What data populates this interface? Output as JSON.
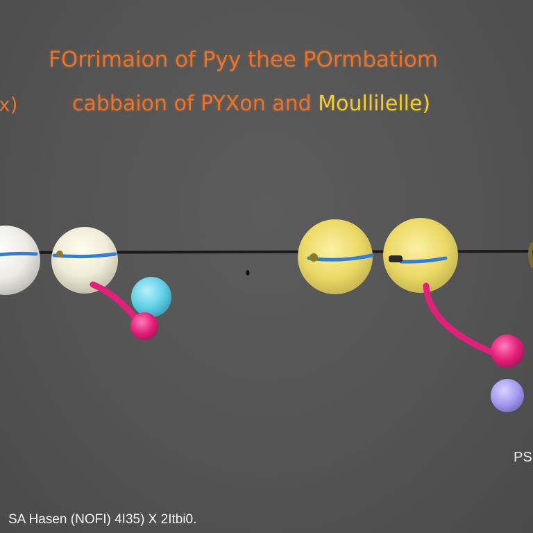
{
  "title": {
    "line1": "FOrrimaion of Pyy thee POrmbatiom",
    "line2_part1": "cabbaion of PYXon and ",
    "line2_part2": "Moullilelle)"
  },
  "left_fragment": "x)",
  "right_fragment": "PS",
  "footer": "SA Hasen (NOFI) 4I35) X 2Itbi0.",
  "colors": {
    "background": "#545454",
    "title_orange": "#e8742c",
    "title_yellow": "#e6d13a",
    "bond_blue": "#2f7fd8",
    "link_pink": "#e0207a",
    "atom_white": "#f1f1ef",
    "atom_yellow": "#f3e27a",
    "atom_cyan": "#63d4ea",
    "atom_lavender": "#a69bf0"
  }
}
